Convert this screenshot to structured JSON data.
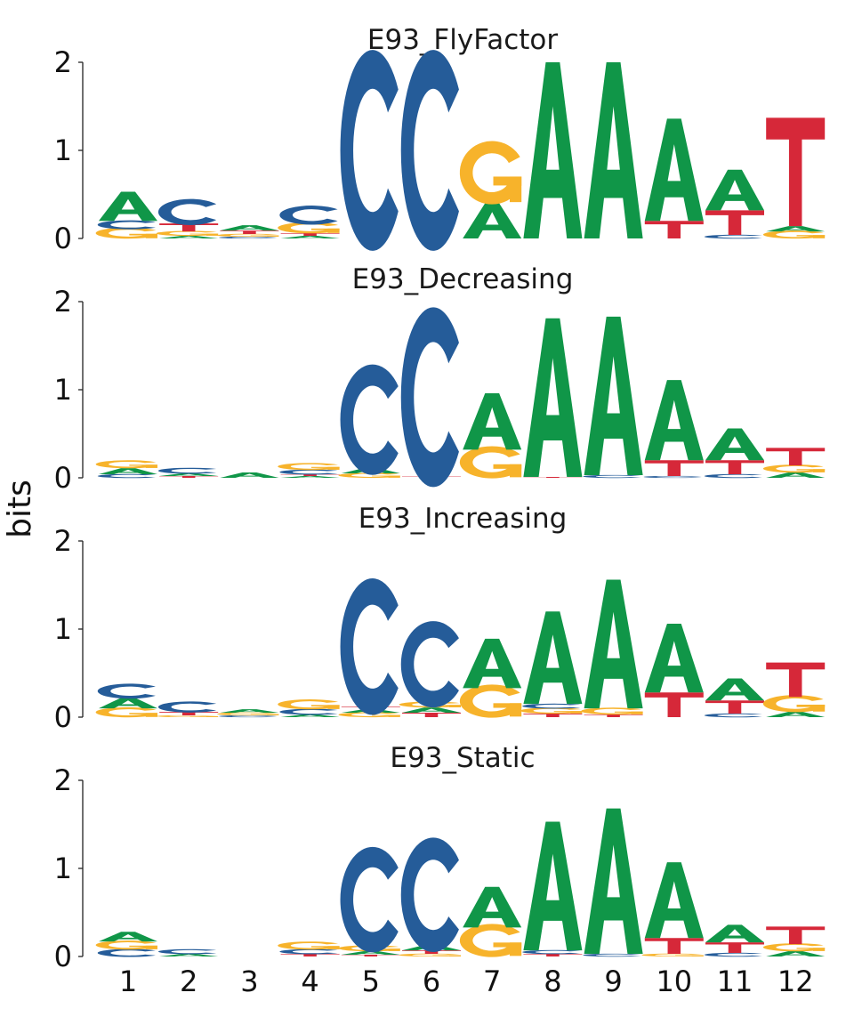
{
  "chart_data": {
    "type": "sequence-logo",
    "ylabel": "bits",
    "ylim": [
      0,
      2
    ],
    "yticks": [
      "0",
      "1",
      "2"
    ],
    "positions": [
      "1",
      "2",
      "3",
      "4",
      "5",
      "6",
      "7",
      "8",
      "9",
      "10",
      "11",
      "12"
    ],
    "colors": {
      "A": "#109648",
      "C": "#255C99",
      "G": "#F7B32B",
      "T": "#D62839"
    },
    "panels": [
      {
        "title": "E93_FlyFactor",
        "stacks": [
          [
            {
              "b": "G",
              "h": 0.11
            },
            {
              "b": "C",
              "h": 0.09
            },
            {
              "b": "A",
              "h": 0.33
            }
          ],
          [
            {
              "b": "A",
              "h": 0.03
            },
            {
              "b": "G",
              "h": 0.05
            },
            {
              "b": "T",
              "h": 0.09
            },
            {
              "b": "C",
              "h": 0.26
            }
          ],
          [
            {
              "b": "C",
              "h": 0.02
            },
            {
              "b": "G",
              "h": 0.03
            },
            {
              "b": "T",
              "h": 0.04
            },
            {
              "b": "A",
              "h": 0.06
            }
          ],
          [
            {
              "b": "A",
              "h": 0.03
            },
            {
              "b": "T",
              "h": 0.03
            },
            {
              "b": "G",
              "h": 0.11
            },
            {
              "b": "C",
              "h": 0.19
            }
          ],
          [
            {
              "b": "C",
              "h": 2.0
            }
          ],
          [
            {
              "b": "C",
              "h": 2.0
            }
          ],
          [
            {
              "b": "A",
              "h": 0.4
            },
            {
              "b": "G",
              "h": 0.63
            }
          ],
          [
            {
              "b": "A",
              "h": 2.0
            }
          ],
          [
            {
              "b": "A",
              "h": 2.0
            }
          ],
          [
            {
              "b": "T",
              "h": 0.2
            },
            {
              "b": "A",
              "h": 1.16
            }
          ],
          [
            {
              "b": "C",
              "h": 0.04
            },
            {
              "b": "T",
              "h": 0.28
            },
            {
              "b": "A",
              "h": 0.46
            }
          ],
          [
            {
              "b": "G",
              "h": 0.08
            },
            {
              "b": "A",
              "h": 0.06
            },
            {
              "b": "T",
              "h": 1.23
            }
          ]
        ]
      },
      {
        "title": "E93_Decreasing",
        "stacks": [
          [
            {
              "b": "C",
              "h": 0.04
            },
            {
              "b": "A",
              "h": 0.07
            },
            {
              "b": "G",
              "h": 0.08
            }
          ],
          [
            {
              "b": "T",
              "h": 0.02
            },
            {
              "b": "A",
              "h": 0.03
            },
            {
              "b": "C",
              "h": 0.06
            }
          ],
          [
            {
              "b": "A",
              "h": 0.06
            }
          ],
          [
            {
              "b": "A",
              "h": 0.02
            },
            {
              "b": "T",
              "h": 0.02
            },
            {
              "b": "C",
              "h": 0.05
            },
            {
              "b": "G",
              "h": 0.07
            }
          ],
          [
            {
              "b": "G",
              "h": 0.05
            },
            {
              "b": "A",
              "h": 0.06
            },
            {
              "b": "C",
              "h": 1.1
            }
          ],
          [
            {
              "b": "T",
              "h": 0.02
            },
            {
              "b": "C",
              "h": 1.79
            }
          ],
          [
            {
              "b": "G",
              "h": 0.32
            },
            {
              "b": "A",
              "h": 0.64
            }
          ],
          [
            {
              "b": "T",
              "h": 0.01
            },
            {
              "b": "A",
              "h": 1.8
            }
          ],
          [
            {
              "b": "C",
              "h": 0.03
            },
            {
              "b": "A",
              "h": 1.8
            }
          ],
          [
            {
              "b": "C",
              "h": 0.02
            },
            {
              "b": "T",
              "h": 0.18
            },
            {
              "b": "A",
              "h": 0.91
            }
          ],
          [
            {
              "b": "C",
              "h": 0.04
            },
            {
              "b": "T",
              "h": 0.16
            },
            {
              "b": "A",
              "h": 0.36
            }
          ],
          [
            {
              "b": "A",
              "h": 0.06
            },
            {
              "b": "G",
              "h": 0.08
            },
            {
              "b": "T",
              "h": 0.2
            }
          ]
        ]
      },
      {
        "title": "E93_Increasing",
        "stacks": [
          [
            {
              "b": "G",
              "h": 0.1
            },
            {
              "b": "A",
              "h": 0.12
            },
            {
              "b": "C",
              "h": 0.15
            }
          ],
          [
            {
              "b": "G",
              "h": 0.02
            },
            {
              "b": "T",
              "h": 0.04
            },
            {
              "b": "C",
              "h": 0.11
            }
          ],
          [
            {
              "b": "C",
              "h": 0.02
            },
            {
              "b": "G",
              "h": 0.03
            },
            {
              "b": "A",
              "h": 0.04
            }
          ],
          [
            {
              "b": "A",
              "h": 0.03
            },
            {
              "b": "C",
              "h": 0.06
            },
            {
              "b": "G",
              "h": 0.1
            }
          ],
          [
            {
              "b": "G",
              "h": 0.05
            },
            {
              "b": "A",
              "h": 0.04
            },
            {
              "b": "T",
              "h": 0.03
            },
            {
              "b": "C",
              "h": 1.36
            }
          ],
          [
            {
              "b": "T",
              "h": 0.05
            },
            {
              "b": "A",
              "h": 0.06
            },
            {
              "b": "G",
              "h": 0.06
            },
            {
              "b": "C",
              "h": 0.86
            }
          ],
          [
            {
              "b": "G",
              "h": 0.33
            },
            {
              "b": "A",
              "h": 0.56
            }
          ],
          [
            {
              "b": "T",
              "h": 0.04
            },
            {
              "b": "G",
              "h": 0.06
            },
            {
              "b": "C",
              "h": 0.05
            },
            {
              "b": "A",
              "h": 1.05
            }
          ],
          [
            {
              "b": "T",
              "h": 0.03
            },
            {
              "b": "G",
              "h": 0.07
            },
            {
              "b": "A",
              "h": 1.46
            }
          ],
          [
            {
              "b": "T",
              "h": 0.28
            },
            {
              "b": "A",
              "h": 0.78
            }
          ],
          [
            {
              "b": "C",
              "h": 0.04
            },
            {
              "b": "T",
              "h": 0.15
            },
            {
              "b": "A",
              "h": 0.25
            }
          ],
          [
            {
              "b": "A",
              "h": 0.06
            },
            {
              "b": "G",
              "h": 0.17
            },
            {
              "b": "T",
              "h": 0.39
            }
          ]
        ]
      },
      {
        "title": "E93_Static",
        "stacks": [
          [
            {
              "b": "C",
              "h": 0.08
            },
            {
              "b": "G",
              "h": 0.09
            },
            {
              "b": "A",
              "h": 0.11
            }
          ],
          [
            {
              "b": "A",
              "h": 0.03
            },
            {
              "b": "C",
              "h": 0.05
            }
          ],
          [],
          [
            {
              "b": "T",
              "h": 0.03
            },
            {
              "b": "C",
              "h": 0.05
            },
            {
              "b": "G",
              "h": 0.08
            }
          ],
          [
            {
              "b": "T",
              "h": 0.02
            },
            {
              "b": "A",
              "h": 0.04
            },
            {
              "b": "G",
              "h": 0.06
            },
            {
              "b": "C",
              "h": 1.05
            }
          ],
          [
            {
              "b": "G",
              "h": 0.03
            },
            {
              "b": "T",
              "h": 0.04
            },
            {
              "b": "A",
              "h": 0.06
            },
            {
              "b": "C",
              "h": 1.14
            }
          ],
          [
            {
              "b": "G",
              "h": 0.33
            },
            {
              "b": "A",
              "h": 0.46
            }
          ],
          [
            {
              "b": "T",
              "h": 0.03
            },
            {
              "b": "C",
              "h": 0.04
            },
            {
              "b": "A",
              "h": 1.46
            }
          ],
          [
            {
              "b": "C",
              "h": 0.03
            },
            {
              "b": "A",
              "h": 1.65
            }
          ],
          [
            {
              "b": "G",
              "h": 0.03
            },
            {
              "b": "T",
              "h": 0.18
            },
            {
              "b": "A",
              "h": 0.86
            }
          ],
          [
            {
              "b": "C",
              "h": 0.04
            },
            {
              "b": "T",
              "h": 0.12
            },
            {
              "b": "A",
              "h": 0.2
            }
          ],
          [
            {
              "b": "A",
              "h": 0.06
            },
            {
              "b": "G",
              "h": 0.08
            },
            {
              "b": "T",
              "h": 0.2
            }
          ]
        ]
      }
    ]
  }
}
